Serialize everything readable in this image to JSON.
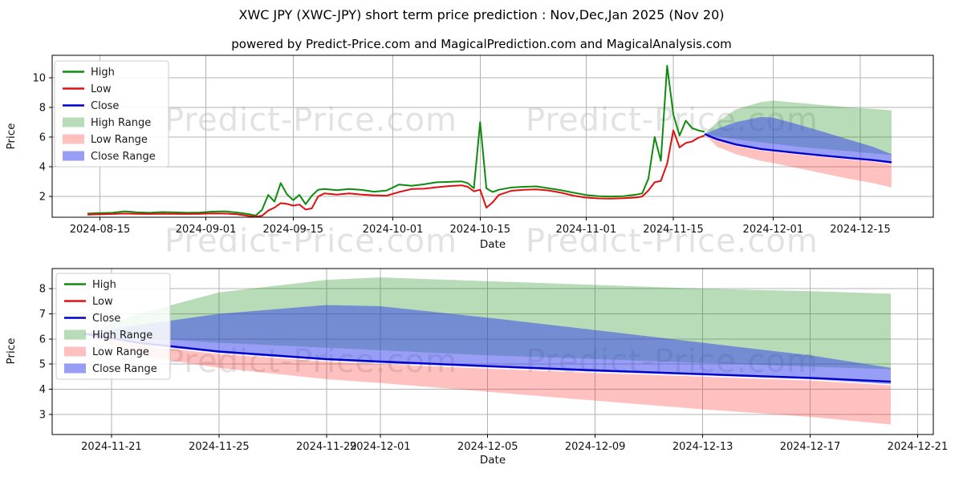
{
  "figure": {
    "title": "XWC JPY (XWC-JPY) short term price prediction : Nov,Dec,Jan 2025 (Nov 20)",
    "subtitle": "powered by Predict-Price.com and MagicalPrediction.com and MagicalAnalysis.com",
    "watermark": "Predict-Price.com",
    "background": "#ffffff"
  },
  "colors": {
    "grid": "#b3b3b3",
    "axis_border": "#000000",
    "text": "#111111",
    "watermark": "#e2e2e2",
    "high_line": "#0f8b0f",
    "low_line": "#e01010",
    "close_line": "#0000cd",
    "high_fill": "rgba(15,139,15,0.30)",
    "low_fill": "rgba(255,30,30,0.28)",
    "close_fill": "rgba(50,60,235,0.50)"
  },
  "legend": {
    "entries": [
      {
        "label": "High",
        "type": "line",
        "color": "#0f8b0f"
      },
      {
        "label": "Low",
        "type": "line",
        "color": "#e01010"
      },
      {
        "label": "Close",
        "type": "line",
        "color": "#0000cd"
      },
      {
        "label": "High Range",
        "type": "patch",
        "color": "rgba(15,139,15,0.30)"
      },
      {
        "label": "Low Range",
        "type": "patch",
        "color": "rgba(255,30,30,0.28)"
      },
      {
        "label": "Close Range",
        "type": "patch",
        "color": "rgba(50,60,235,0.50)"
      }
    ]
  },
  "chart_data": [
    {
      "type": "line",
      "title": "",
      "xlabel": "Date",
      "ylabel": "Price",
      "grid": true,
      "legend_position": "upper left",
      "xlim": [
        "2024-08-07T08:00",
        "2024-12-26T17:00"
      ],
      "ylim": [
        0.6,
        11.5
      ],
      "x_ticks": [
        "2024-08-15",
        "2024-09-01",
        "2024-09-15",
        "2024-10-01",
        "2024-10-15",
        "2024-11-01",
        "2024-11-15",
        "2024-12-01",
        "2024-12-15"
      ],
      "y_ticks": [
        2,
        4,
        6,
        8,
        10
      ],
      "series": [
        {
          "name": "High",
          "color": "#0f8b0f",
          "width": 2,
          "x": [
            "2024-08-13",
            "2024-08-15",
            "2024-08-17",
            "2024-08-19",
            "2024-08-21",
            "2024-08-23",
            "2024-08-25",
            "2024-08-27",
            "2024-08-29",
            "2024-08-31",
            "2024-09-02",
            "2024-09-04",
            "2024-09-06",
            "2024-09-08",
            "2024-09-09",
            "2024-09-10",
            "2024-09-11",
            "2024-09-12",
            "2024-09-13",
            "2024-09-14",
            "2024-09-15",
            "2024-09-16",
            "2024-09-17",
            "2024-09-18",
            "2024-09-19",
            "2024-09-20",
            "2024-09-22",
            "2024-09-24",
            "2024-09-26",
            "2024-09-28",
            "2024-09-30",
            "2024-10-02",
            "2024-10-04",
            "2024-10-06",
            "2024-10-08",
            "2024-10-10",
            "2024-10-12",
            "2024-10-13",
            "2024-10-14",
            "2024-10-15",
            "2024-10-16",
            "2024-10-17",
            "2024-10-18",
            "2024-10-20",
            "2024-10-22",
            "2024-10-24",
            "2024-10-26",
            "2024-10-28",
            "2024-10-30",
            "2024-11-01",
            "2024-11-03",
            "2024-11-05",
            "2024-11-07",
            "2024-11-09",
            "2024-11-10",
            "2024-11-11",
            "2024-11-12",
            "2024-11-13",
            "2024-11-14",
            "2024-11-15",
            "2024-11-16",
            "2024-11-17",
            "2024-11-18",
            "2024-11-19",
            "2024-11-20"
          ],
          "y": [
            0.85,
            0.88,
            0.9,
            1.0,
            0.93,
            0.9,
            0.95,
            0.93,
            0.9,
            0.92,
            0.98,
            1.0,
            0.92,
            0.8,
            0.72,
            1.1,
            2.1,
            1.65,
            2.9,
            2.15,
            1.75,
            2.1,
            1.48,
            2.05,
            2.45,
            2.5,
            2.42,
            2.5,
            2.44,
            2.32,
            2.4,
            2.8,
            2.72,
            2.82,
            2.95,
            2.98,
            3.02,
            2.9,
            2.55,
            7.0,
            2.55,
            2.3,
            2.45,
            2.6,
            2.65,
            2.68,
            2.55,
            2.42,
            2.25,
            2.1,
            2.02,
            2.0,
            2.02,
            2.12,
            2.2,
            3.2,
            6.0,
            4.4,
            10.8,
            7.5,
            6.1,
            7.1,
            6.6,
            6.45,
            6.35
          ]
        },
        {
          "name": "Low",
          "color": "#e01010",
          "width": 2,
          "x": [
            "2024-08-13",
            "2024-08-15",
            "2024-08-17",
            "2024-08-19",
            "2024-08-21",
            "2024-08-23",
            "2024-08-25",
            "2024-08-27",
            "2024-08-29",
            "2024-08-31",
            "2024-09-02",
            "2024-09-04",
            "2024-09-06",
            "2024-09-08",
            "2024-09-09",
            "2024-09-10",
            "2024-09-11",
            "2024-09-12",
            "2024-09-13",
            "2024-09-14",
            "2024-09-15",
            "2024-09-16",
            "2024-09-17",
            "2024-09-18",
            "2024-09-19",
            "2024-09-20",
            "2024-09-22",
            "2024-09-24",
            "2024-09-26",
            "2024-09-28",
            "2024-09-30",
            "2024-10-02",
            "2024-10-04",
            "2024-10-06",
            "2024-10-08",
            "2024-10-10",
            "2024-10-12",
            "2024-10-13",
            "2024-10-14",
            "2024-10-15",
            "2024-10-16",
            "2024-10-17",
            "2024-10-18",
            "2024-10-20",
            "2024-10-22",
            "2024-10-24",
            "2024-10-26",
            "2024-10-28",
            "2024-10-30",
            "2024-11-01",
            "2024-11-03",
            "2024-11-05",
            "2024-11-07",
            "2024-11-09",
            "2024-11-10",
            "2024-11-11",
            "2024-11-12",
            "2024-11-13",
            "2024-11-14",
            "2024-11-15",
            "2024-11-16",
            "2024-11-17",
            "2024-11-18",
            "2024-11-19",
            "2024-11-20"
          ],
          "y": [
            0.78,
            0.8,
            0.82,
            0.85,
            0.83,
            0.82,
            0.84,
            0.83,
            0.82,
            0.83,
            0.86,
            0.85,
            0.8,
            0.68,
            0.63,
            0.7,
            1.05,
            1.25,
            1.55,
            1.5,
            1.38,
            1.45,
            1.12,
            1.2,
            2.0,
            2.2,
            2.12,
            2.2,
            2.12,
            2.08,
            2.05,
            2.3,
            2.5,
            2.52,
            2.62,
            2.7,
            2.75,
            2.65,
            2.35,
            2.45,
            1.25,
            1.6,
            2.1,
            2.38,
            2.45,
            2.48,
            2.4,
            2.25,
            2.05,
            1.92,
            1.87,
            1.85,
            1.88,
            1.93,
            2.0,
            2.4,
            2.95,
            3.05,
            4.2,
            6.45,
            5.3,
            5.6,
            5.7,
            5.95,
            6.1
          ]
        },
        {
          "name": "Close",
          "color": "#0000cd",
          "width": 2.4,
          "x": [
            "2024-11-20",
            "2024-11-22",
            "2024-11-25",
            "2024-11-29",
            "2024-12-01",
            "2024-12-05",
            "2024-12-09",
            "2024-12-13",
            "2024-12-17",
            "2024-12-20"
          ],
          "y": [
            6.2,
            5.85,
            5.5,
            5.2,
            5.1,
            4.92,
            4.75,
            4.6,
            4.45,
            4.3
          ]
        }
      ],
      "bands": [
        {
          "name": "High Range",
          "color": "rgba(15,139,15,0.30)",
          "x": [
            "2024-11-20",
            "2024-11-22",
            "2024-11-25",
            "2024-11-29",
            "2024-12-01",
            "2024-12-05",
            "2024-12-09",
            "2024-12-13",
            "2024-12-17",
            "2024-12-20"
          ],
          "upper": [
            6.2,
            7.0,
            7.85,
            8.35,
            8.45,
            8.3,
            8.15,
            8.0,
            7.9,
            7.8
          ],
          "lower": [
            6.2,
            6.05,
            5.85,
            5.65,
            5.55,
            5.35,
            5.2,
            5.05,
            4.9,
            4.8
          ]
        },
        {
          "name": "Low Range",
          "color": "rgba(255,30,30,0.28)",
          "x": [
            "2024-11-20",
            "2024-11-22",
            "2024-11-25",
            "2024-11-29",
            "2024-12-01",
            "2024-12-05",
            "2024-12-09",
            "2024-12-13",
            "2024-12-17",
            "2024-12-20"
          ],
          "upper": [
            6.2,
            5.75,
            5.4,
            5.1,
            5.0,
            4.82,
            4.65,
            4.5,
            4.35,
            4.15
          ],
          "lower": [
            6.2,
            5.35,
            4.85,
            4.4,
            4.25,
            3.9,
            3.55,
            3.2,
            2.9,
            2.6
          ]
        },
        {
          "name": "Close Range",
          "color": "rgba(50,60,235,0.50)",
          "x": [
            "2024-11-20",
            "2024-11-22",
            "2024-11-25",
            "2024-11-29",
            "2024-12-01",
            "2024-12-05",
            "2024-12-09",
            "2024-12-13",
            "2024-12-17",
            "2024-12-20"
          ],
          "upper": [
            6.2,
            6.55,
            7.0,
            7.35,
            7.3,
            6.85,
            6.35,
            5.85,
            5.35,
            4.85
          ],
          "lower": [
            6.2,
            5.8,
            5.45,
            5.15,
            5.05,
            4.87,
            4.7,
            4.55,
            4.4,
            4.2
          ]
        }
      ]
    },
    {
      "type": "line",
      "title": "",
      "xlabel": "Date",
      "ylabel": "Price",
      "grid": true,
      "legend_position": "upper left",
      "xlim": [
        "2024-11-18T19:00",
        "2024-12-21T14:00"
      ],
      "ylim": [
        2.2,
        8.8
      ],
      "x_ticks": [
        "2024-11-21",
        "2024-11-25",
        "2024-11-29",
        "2024-12-01",
        "2024-12-05",
        "2024-12-09",
        "2024-12-13",
        "2024-12-17",
        "2024-12-21"
      ],
      "y_ticks": [
        3,
        4,
        5,
        6,
        7,
        8
      ],
      "series": [
        {
          "name": "Close",
          "color": "#0000cd",
          "width": 2.4,
          "x": [
            "2024-11-20",
            "2024-11-22",
            "2024-11-25",
            "2024-11-29",
            "2024-12-01",
            "2024-12-05",
            "2024-12-09",
            "2024-12-13",
            "2024-12-17",
            "2024-12-20"
          ],
          "y": [
            6.2,
            5.85,
            5.5,
            5.2,
            5.1,
            4.92,
            4.75,
            4.6,
            4.45,
            4.3
          ]
        }
      ],
      "bands": [
        {
          "name": "High Range",
          "color": "rgba(15,139,15,0.30)",
          "x": [
            "2024-11-20",
            "2024-11-22",
            "2024-11-25",
            "2024-11-29",
            "2024-12-01",
            "2024-12-05",
            "2024-12-09",
            "2024-12-13",
            "2024-12-17",
            "2024-12-20"
          ],
          "upper": [
            6.2,
            7.0,
            7.85,
            8.35,
            8.45,
            8.3,
            8.15,
            8.0,
            7.9,
            7.8
          ],
          "lower": [
            6.2,
            6.05,
            5.85,
            5.65,
            5.55,
            5.35,
            5.2,
            5.05,
            4.9,
            4.8
          ]
        },
        {
          "name": "Low Range",
          "color": "rgba(255,30,30,0.28)",
          "x": [
            "2024-11-20",
            "2024-11-22",
            "2024-11-25",
            "2024-11-29",
            "2024-12-01",
            "2024-12-05",
            "2024-12-09",
            "2024-12-13",
            "2024-12-17",
            "2024-12-20"
          ],
          "upper": [
            6.2,
            5.75,
            5.4,
            5.1,
            5.0,
            4.82,
            4.65,
            4.5,
            4.35,
            4.15
          ],
          "lower": [
            6.2,
            5.35,
            4.85,
            4.4,
            4.25,
            3.9,
            3.55,
            3.2,
            2.9,
            2.6
          ]
        },
        {
          "name": "Close Range",
          "color": "rgba(50,60,235,0.50)",
          "x": [
            "2024-11-20",
            "2024-11-22",
            "2024-11-25",
            "2024-11-29",
            "2024-12-01",
            "2024-12-05",
            "2024-12-09",
            "2024-12-13",
            "2024-12-17",
            "2024-12-20"
          ],
          "upper": [
            6.2,
            6.55,
            7.0,
            7.35,
            7.3,
            6.85,
            6.35,
            5.85,
            5.35,
            4.85
          ],
          "lower": [
            6.2,
            5.8,
            5.45,
            5.15,
            5.05,
            4.87,
            4.7,
            4.55,
            4.4,
            4.2
          ]
        }
      ]
    }
  ]
}
